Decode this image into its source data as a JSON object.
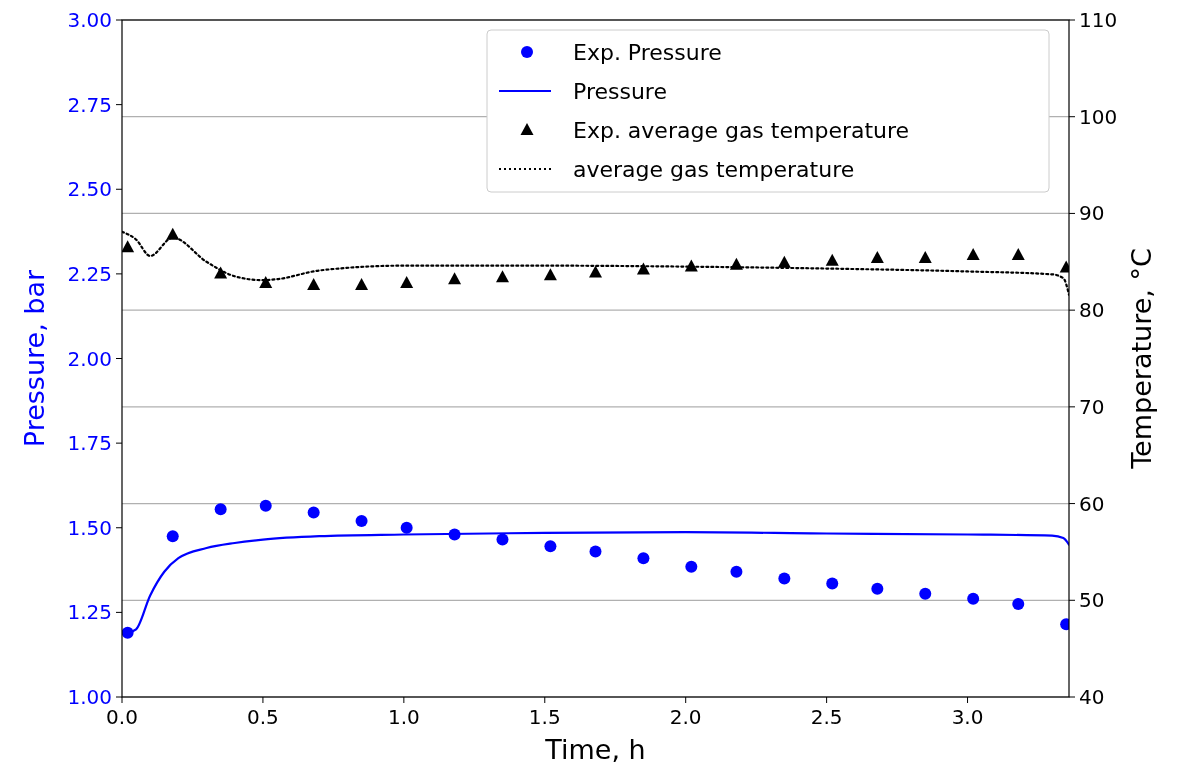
{
  "chart_data": {
    "type": "line",
    "xlabel": "Time, h",
    "ylabel": "Pressure, bar",
    "y2label": "Temperature, °C",
    "xlim": [
      0,
      3.36
    ],
    "xticks": [
      {
        "value": 0,
        "label": "0.0"
      },
      {
        "value": 0.5,
        "label": "0.5"
      },
      {
        "value": 1,
        "label": "1.0"
      },
      {
        "value": 1.5,
        "label": "1.5"
      },
      {
        "value": 2,
        "label": "2.0"
      },
      {
        "value": 2.5,
        "label": "2.5"
      },
      {
        "value": 3,
        "label": "3.0"
      }
    ],
    "ylim": [
      1,
      3
    ],
    "yticks": [
      {
        "value": 1,
        "label": "1.00"
      },
      {
        "value": 1.25,
        "label": "1.25"
      },
      {
        "value": 1.5,
        "label": "1.50"
      },
      {
        "value": 1.75,
        "label": "1.75"
      },
      {
        "value": 2,
        "label": "2.00"
      },
      {
        "value": 2.25,
        "label": "2.25"
      },
      {
        "value": 2.5,
        "label": "2.50"
      },
      {
        "value": 2.75,
        "label": "2.75"
      },
      {
        "value": 3,
        "label": "3.00"
      }
    ],
    "y2lim": [
      40,
      110
    ],
    "y2ticks": [
      40,
      50,
      60,
      70,
      80,
      90,
      100,
      110
    ],
    "grid": "y2",
    "legend": "top right",
    "series": [
      {
        "name": "Exp. Pressure",
        "type": "scatter",
        "color": "#0000ff",
        "marker": "circle",
        "x": [
          0.02,
          0.18,
          0.35,
          0.51,
          0.68,
          0.85,
          1.01,
          1.18,
          1.35,
          1.52,
          1.68,
          1.85,
          2.02,
          2.18,
          2.35,
          2.52,
          2.68,
          2.85,
          3.02,
          3.18,
          3.35
        ],
        "values": [
          1.19,
          1.475,
          1.555,
          1.565,
          1.545,
          1.52,
          1.5,
          1.48,
          1.465,
          1.445,
          1.43,
          1.41,
          1.385,
          1.37,
          1.35,
          1.335,
          1.32,
          1.305,
          1.29,
          1.275,
          1.215
        ]
      },
      {
        "name": "Pressure",
        "color": "#0000ff",
        "line_style": "solid",
        "x": [
          0.02,
          0.05,
          0.1,
          0.15,
          0.2,
          0.3,
          0.4,
          0.5,
          0.7,
          1.0,
          1.5,
          2.0,
          2.5,
          3.0,
          3.3,
          3.34,
          3.36
        ],
        "values": [
          1.19,
          1.2,
          1.3,
          1.37,
          1.41,
          1.44,
          1.455,
          1.465,
          1.475,
          1.48,
          1.485,
          1.487,
          1.483,
          1.48,
          1.477,
          1.47,
          1.45
        ]
      },
      {
        "name": "Exp. average gas temperature",
        "type": "scatter",
        "axis": "y2",
        "color": "#000000",
        "marker": "triangle",
        "x": [
          0.02,
          0.18,
          0.35,
          0.51,
          0.68,
          0.85,
          1.01,
          1.18,
          1.35,
          1.52,
          1.68,
          1.85,
          2.02,
          2.18,
          2.35,
          2.52,
          2.68,
          2.85,
          3.02,
          3.18,
          3.35
        ],
        "values": [
          86.5,
          87.8,
          83.8,
          82.8,
          82.6,
          82.6,
          82.8,
          83.2,
          83.4,
          83.6,
          83.9,
          84.2,
          84.5,
          84.7,
          84.9,
          85.1,
          85.4,
          85.4,
          85.7,
          85.7,
          84.4
        ]
      },
      {
        "name": "average gas temperature",
        "axis": "y2",
        "color": "#000000",
        "line_style": "dotted",
        "x": [
          0,
          0.05,
          0.1,
          0.18,
          0.3,
          0.4,
          0.5,
          0.55,
          0.7,
          1.0,
          1.5,
          2.0,
          2.5,
          3.0,
          3.3,
          3.34,
          3.36
        ],
        "values": [
          88.1,
          87.3,
          85.6,
          87.5,
          85,
          83.5,
          83.1,
          83.2,
          84.1,
          84.6,
          84.6,
          84.5,
          84.3,
          84,
          83.7,
          83.3,
          81.6
        ]
      }
    ]
  }
}
